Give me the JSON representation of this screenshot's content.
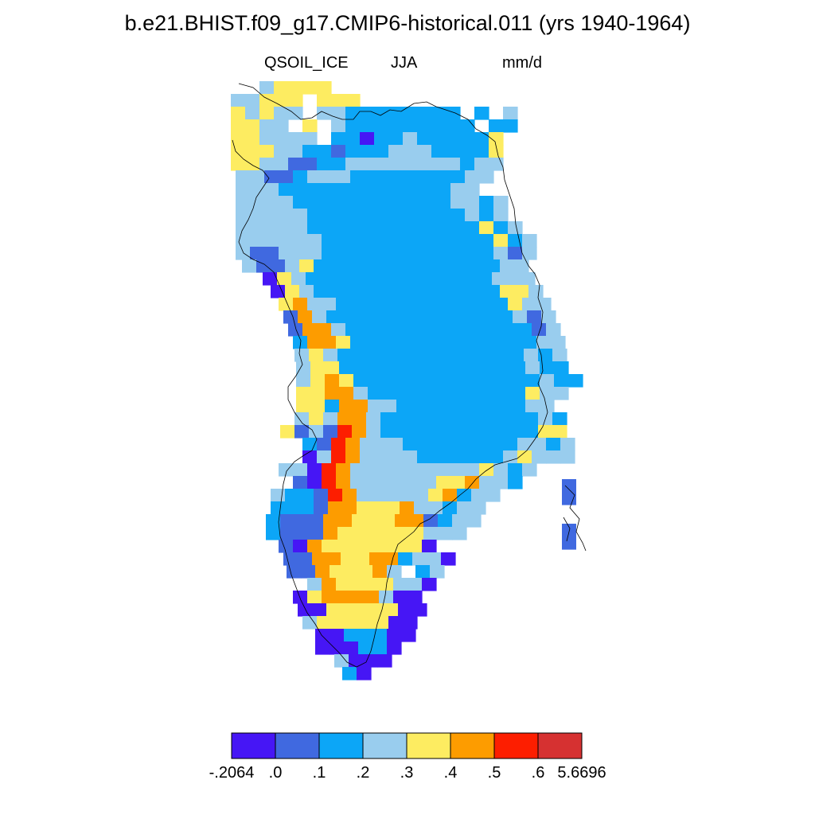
{
  "figure": {
    "title": "b.e21.BHIST.f09_g17.CMIP6-historical.011 (yrs 1940-1964)",
    "variable": "QSOIL_ICE",
    "season": "JJA",
    "units": "mm/d"
  },
  "colorbar": {
    "labels": [
      "-.2064",
      ".0",
      ".1",
      ".2",
      ".3",
      ".4",
      ".5",
      ".6",
      "5.6696"
    ],
    "colors": [
      "#4616f5",
      "#4069e0",
      "#0ca6f7",
      "#99cdee",
      "#fdec61",
      "#fd9c00",
      "#fd1e00",
      "#d63131"
    ]
  },
  "map": {
    "region": "Greenland",
    "category_colors": {
      "a": "#4616f5",
      "b": "#4069e0",
      "c": "#0ca6f7",
      "d": "#99cdee",
      "e": "#fdec61",
      "f": "#fd9c00",
      "g": "#fd1e00"
    }
  }
}
